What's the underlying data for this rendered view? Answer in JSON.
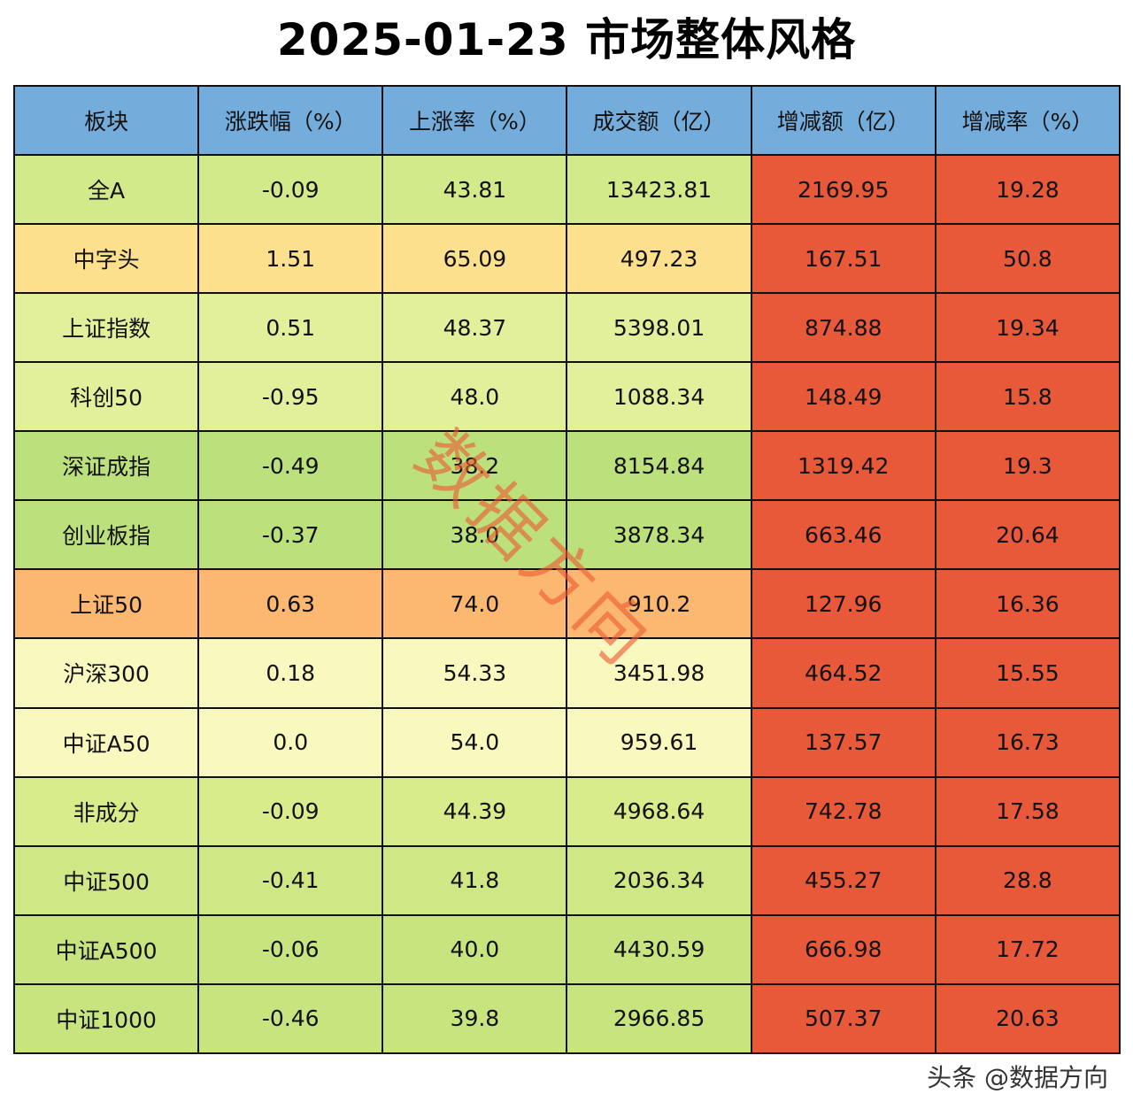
{
  "title": "2025-01-23 市场整体风格",
  "watermark": "数据方向",
  "credit": "头条 @数据方向",
  "colors": {
    "header_bg": "#74addb",
    "increase_cols_bg": "#e8593a",
    "row_bg": [
      "#d3ea8a",
      "#fde08e",
      "#e2f09c",
      "#e2f09c",
      "#bce07b",
      "#bce07b",
      "#fcb870",
      "#f9f8bf",
      "#f9f8bf",
      "#d8ec8c",
      "#cfe785",
      "#c8e47f",
      "#c8e47f"
    ]
  },
  "table": {
    "headers": [
      "板块",
      "涨跌幅（%）",
      "上涨率（%）",
      "成交额（亿）",
      "增减额（亿）",
      "增减率（%）"
    ],
    "rows": [
      [
        "全A",
        "-0.09",
        "43.81",
        "13423.81",
        "2169.95",
        "19.28"
      ],
      [
        "中字头",
        "1.51",
        "65.09",
        "497.23",
        "167.51",
        "50.8"
      ],
      [
        "上证指数",
        "0.51",
        "48.37",
        "5398.01",
        "874.88",
        "19.34"
      ],
      [
        "科创50",
        "-0.95",
        "48.0",
        "1088.34",
        "148.49",
        "15.8"
      ],
      [
        "深证成指",
        "-0.49",
        "38.2",
        "8154.84",
        "1319.42",
        "19.3"
      ],
      [
        "创业板指",
        "-0.37",
        "38.0",
        "3878.34",
        "663.46",
        "20.64"
      ],
      [
        "上证50",
        "0.63",
        "74.0",
        "910.2",
        "127.96",
        "16.36"
      ],
      [
        "沪深300",
        "0.18",
        "54.33",
        "3451.98",
        "464.52",
        "15.55"
      ],
      [
        "中证A50",
        "0.0",
        "54.0",
        "959.61",
        "137.57",
        "16.73"
      ],
      [
        "非成分",
        "-0.09",
        "44.39",
        "4968.64",
        "742.78",
        "17.58"
      ],
      [
        "中证500",
        "-0.41",
        "41.8",
        "2036.34",
        "455.27",
        "28.8"
      ],
      [
        "中证A500",
        "-0.06",
        "40.0",
        "4430.59",
        "666.98",
        "17.72"
      ],
      [
        "中证1000",
        "-0.46",
        "39.8",
        "2966.85",
        "507.37",
        "20.63"
      ]
    ]
  },
  "chart_data": {
    "type": "table",
    "title": "2025-01-23 市场整体风格",
    "columns": [
      "板块",
      "涨跌幅（%）",
      "上涨率（%）",
      "成交额（亿）",
      "增减额（亿）",
      "增减率（%）"
    ],
    "categories": [
      "全A",
      "中字头",
      "上证指数",
      "科创50",
      "深证成指",
      "创业板指",
      "上证50",
      "沪深300",
      "中证A50",
      "非成分",
      "中证500",
      "中证A500",
      "中证1000"
    ],
    "series": [
      {
        "name": "涨跌幅（%）",
        "values": [
          -0.09,
          1.51,
          0.51,
          -0.95,
          -0.49,
          -0.37,
          0.63,
          0.18,
          0.0,
          -0.09,
          -0.41,
          -0.06,
          -0.46
        ]
      },
      {
        "name": "上涨率（%）",
        "values": [
          43.81,
          65.09,
          48.37,
          48.0,
          38.2,
          38.0,
          74.0,
          54.33,
          54.0,
          44.39,
          41.8,
          40.0,
          39.8
        ]
      },
      {
        "name": "成交额（亿）",
        "values": [
          13423.81,
          497.23,
          5398.01,
          1088.34,
          8154.84,
          3878.34,
          910.2,
          3451.98,
          959.61,
          4968.64,
          2036.34,
          4430.59,
          2966.85
        ]
      },
      {
        "name": "增减额（亿）",
        "values": [
          2169.95,
          167.51,
          874.88,
          148.49,
          1319.42,
          663.46,
          127.96,
          464.52,
          137.57,
          742.78,
          455.27,
          666.98,
          507.37
        ]
      },
      {
        "name": "增减率（%）",
        "values": [
          19.28,
          50.8,
          19.34,
          15.8,
          19.3,
          20.64,
          16.36,
          15.55,
          16.73,
          17.58,
          28.8,
          17.72,
          20.63
        ]
      }
    ]
  }
}
